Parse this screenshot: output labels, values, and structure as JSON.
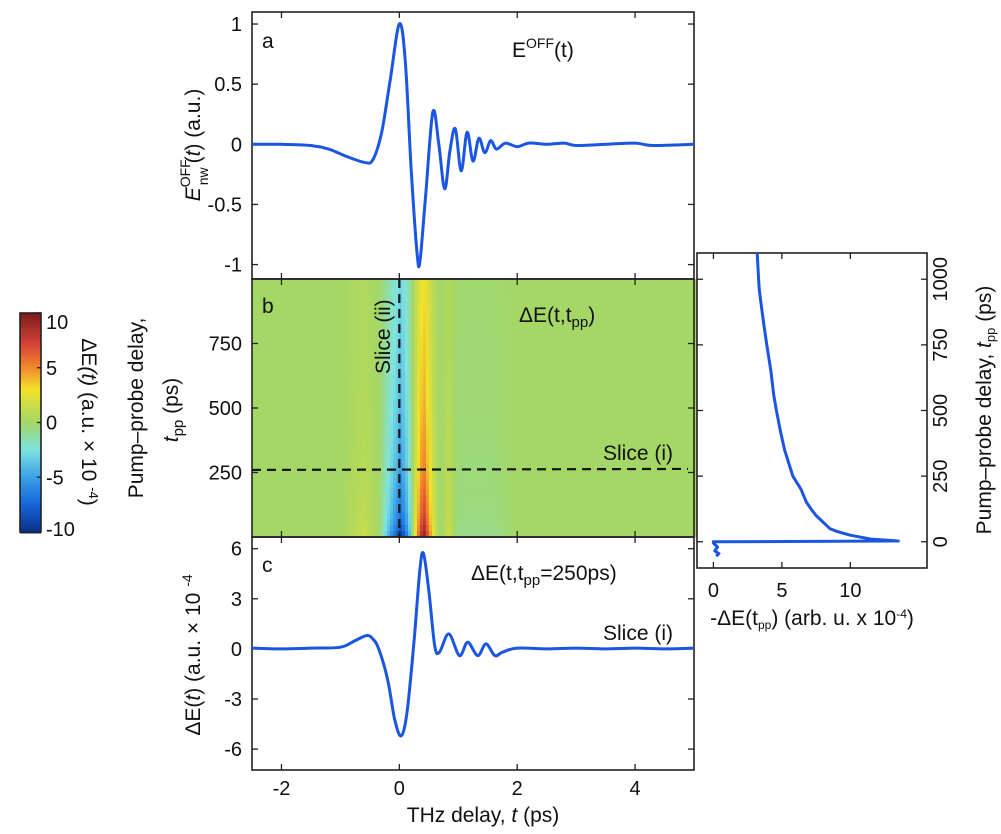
{
  "colors": {
    "curve": "#1a56e0",
    "background": "#ffffff"
  },
  "colormap": {
    "stops": [
      -10,
      -7.5,
      -5,
      -2.5,
      0,
      3,
      5,
      7,
      10
    ],
    "colors": [
      "#0b2f8a",
      "#1565d8",
      "#3aa0e8",
      "#7fe3e0",
      "#a4d766",
      "#f2e22c",
      "#f08a2a",
      "#d9463a",
      "#7a1a1a"
    ]
  },
  "chart_data": [
    {
      "panel": "a",
      "type": "line",
      "panel_label": "a",
      "annotation": {
        "base": "E",
        "sup": "OFF",
        "tail": "(t)"
      },
      "ylabel": {
        "base": "E",
        "sub": "nw",
        "sup": "OFF",
        "tail1": "(",
        "t": "t",
        "tail2": ") (a.u.)"
      },
      "xlim": [
        -2.5,
        5
      ],
      "ylim": [
        -1.12,
        1.1
      ],
      "yticks": [
        1,
        0.5,
        0,
        -0.5,
        -1
      ],
      "ytick_labels": [
        "1",
        "0.5",
        "0",
        "-0.5",
        "-1"
      ],
      "x": [
        -2.5,
        -2,
        -1.5,
        -1.2,
        -0.9,
        -0.6,
        -0.45,
        -0.3,
        -0.15,
        0,
        0.1,
        0.2,
        0.3,
        0.35,
        0.45,
        0.57,
        0.67,
        0.77,
        0.86,
        0.95,
        1.05,
        1.15,
        1.25,
        1.35,
        1.45,
        1.55,
        1.65,
        1.8,
        2.0,
        2.2,
        2.5,
        2.8,
        3.0,
        3.5,
        4.0,
        4.3,
        5.0
      ],
      "y": [
        0,
        0,
        -0.01,
        -0.04,
        -0.1,
        -0.15,
        -0.13,
        0.1,
        0.55,
        1.0,
        0.7,
        -0.2,
        -0.9,
        -0.97,
        -0.4,
        0.27,
        0.0,
        -0.37,
        -0.05,
        0.13,
        -0.22,
        0.1,
        -0.14,
        0.05,
        -0.07,
        0.03,
        -0.04,
        0.01,
        -0.02,
        0.01,
        0.0,
        0.01,
        -0.01,
        0.0,
        0.01,
        -0.01,
        0
      ]
    },
    {
      "panel": "b",
      "type": "heatmap",
      "panel_label": "b",
      "annotation": {
        "base": "ΔE(t,t",
        "sub": "pp",
        "tail": ")"
      },
      "ylabel": {
        "line1": "Pump–probe delay,",
        "t": "t",
        "sub": "pp",
        "tail": " (ps)"
      },
      "xlim": [
        -2.5,
        5
      ],
      "ylim": [
        0,
        1000
      ],
      "yticks": [
        750,
        500,
        250
      ],
      "ytick_labels": [
        "750",
        "500",
        "250"
      ],
      "slice_ii": {
        "t": 0,
        "label": "Slice (ii)"
      },
      "slice_i": {
        "tpp": 260,
        "label": "Slice (i)"
      },
      "t": [
        -2.5,
        -1,
        -0.6,
        -0.35,
        -0.1,
        0.03,
        0.15,
        0.3,
        0.41,
        0.55,
        0.68,
        0.84,
        1.0,
        1.3,
        1.6,
        2,
        5
      ],
      "tpp": [
        0,
        50,
        100,
        250,
        500,
        750,
        1000
      ],
      "z": [
        [
          0,
          0,
          1.5,
          0,
          -6.7,
          -9.9,
          -5.7,
          4.8,
          10,
          3.8,
          -0.4,
          1.7,
          -0.8,
          -0.8,
          -0.8,
          0,
          0
        ],
        [
          0,
          0,
          1.2,
          0,
          -5.1,
          -7.6,
          -4.4,
          3.7,
          8.4,
          2.9,
          -0.3,
          1.3,
          -0.6,
          -0.6,
          -0.6,
          0,
          0
        ],
        [
          0,
          0,
          1.0,
          0,
          -4.5,
          -6.7,
          -3.9,
          3.2,
          7.4,
          2.6,
          -0.3,
          1.2,
          -0.5,
          -0.5,
          -0.5,
          0,
          0
        ],
        [
          0,
          0,
          0.8,
          0,
          -3.5,
          -5.2,
          -3.0,
          2.5,
          5.7,
          2.0,
          -0.2,
          0.9,
          -0.4,
          -0.4,
          -0.4,
          0,
          0
        ],
        [
          0,
          0,
          0.6,
          0,
          -2.8,
          -4.1,
          -2.4,
          2.0,
          4.5,
          1.6,
          -0.2,
          0.7,
          -0.3,
          -0.3,
          -0.3,
          0,
          0
        ],
        [
          0,
          0,
          0.5,
          0,
          -2.3,
          -3.5,
          -2.0,
          1.7,
          3.8,
          1.3,
          -0.1,
          0.6,
          -0.3,
          -0.3,
          -0.3,
          0,
          0
        ],
        [
          0,
          0,
          0.5,
          0,
          -2.0,
          -3.0,
          -1.7,
          1.4,
          3.2,
          1.1,
          -0.1,
          0.5,
          -0.2,
          -0.2,
          -0.2,
          0,
          0
        ]
      ],
      "colorbar": {
        "zlim": [
          -10,
          10
        ],
        "ticks": [
          10,
          5,
          0,
          -5,
          -10
        ],
        "tick_labels": [
          "10",
          "5",
          "0",
          "-5",
          "-10"
        ],
        "label": {
          "base": "ΔE",
          "t": "(t)",
          "tail": " (a.u. × 10 ",
          "exp": "-4",
          "close": ")"
        }
      }
    },
    {
      "panel": "c",
      "type": "line",
      "panel_label": "c",
      "annotation": {
        "base": "ΔE(t,t",
        "sub": "pp",
        "tail": "=250ps)"
      },
      "series_label": "Slice (i)",
      "ylabel": {
        "base": "ΔE(",
        "t": "t",
        "tail": ") (a.u. × 10 ",
        "exp": "-4"
      },
      "xlabel": {
        "base": "THz delay, ",
        "t": "t",
        "tail": " (ps)"
      },
      "xlim": [
        -2.5,
        5
      ],
      "ylim": [
        -7.25,
        6.7
      ],
      "xticks": [
        -2,
        0,
        2,
        4
      ],
      "xtick_labels": [
        "-2",
        "0",
        "2",
        "4"
      ],
      "yticks": [
        6,
        3,
        0,
        -3,
        -6
      ],
      "ytick_labels": [
        "6",
        "3",
        "0",
        "-3",
        "-6"
      ],
      "x": [
        -2.5,
        -2,
        -1.5,
        -1.0,
        -0.75,
        -0.55,
        -0.45,
        -0.35,
        -0.2,
        -0.08,
        0.03,
        0.13,
        0.25,
        0.35,
        0.41,
        0.5,
        0.6,
        0.68,
        0.84,
        1.02,
        1.16,
        1.33,
        1.47,
        1.62,
        1.75,
        2.0,
        2.5,
        3.0,
        3.5,
        4.0,
        4.5,
        5.0
      ],
      "y": [
        0.05,
        0.0,
        0.05,
        0.1,
        0.5,
        0.8,
        0.6,
        0.0,
        -1.8,
        -4.2,
        -5.2,
        -3.8,
        0.5,
        4.8,
        5.7,
        3.5,
        0.2,
        -0.2,
        0.9,
        -0.4,
        0.4,
        -0.4,
        0.3,
        -0.4,
        -0.2,
        0.05,
        0.0,
        0.05,
        0.0,
        0.05,
        0.0,
        0.05
      ]
    },
    {
      "panel": "d",
      "type": "line",
      "xlabel": {
        "base": "-ΔE(t",
        "sub": "pp",
        "tail": ")  (arb. u. x 10",
        "exp": "-4",
        "close": ")"
      },
      "ylabel": {
        "base": "Pump–probe delay, ",
        "t": "t",
        "sub": "pp",
        "tail": " (ps)"
      },
      "xlim": [
        -1.2,
        15.6
      ],
      "ylim": [
        -100,
        1100
      ],
      "xticks": [
        0,
        5,
        10
      ],
      "xtick_labels": [
        "0",
        "5",
        "10"
      ],
      "yticks": [
        0,
        250,
        500,
        750,
        1000
      ],
      "ytick_labels": [
        "0",
        "250",
        "500",
        "750",
        "1000"
      ],
      "x": [
        0.2,
        0.4,
        0.1,
        0.3,
        0.0,
        0.0,
        13.5,
        11.5,
        10.0,
        9.0,
        8.5,
        7.5,
        7.2,
        6.8,
        6.4,
        5.8,
        5.5,
        5.2,
        4.9,
        4.6,
        4.4,
        4.2,
        3.9,
        3.7,
        3.5,
        3.35,
        3.3,
        3.2
      ],
      "y": [
        -55,
        -45,
        -35,
        -20,
        -5,
        0,
        3,
        10,
        25,
        40,
        50,
        100,
        120,
        150,
        200,
        250,
        300,
        350,
        420,
        500,
        560,
        650,
        750,
        820,
        900,
        960,
        1000,
        1100
      ]
    }
  ]
}
